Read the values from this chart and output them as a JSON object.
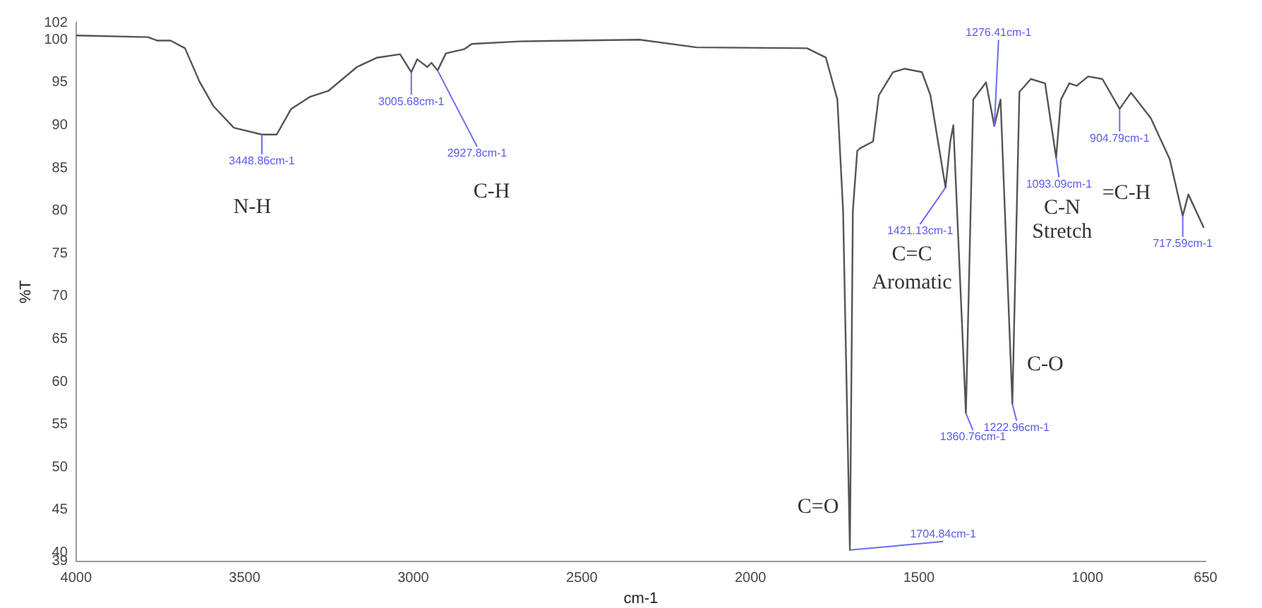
{
  "chart_data": {
    "type": "line",
    "xlabel": "cm-1",
    "ylabel": "%T",
    "x": [
      4000,
      3787,
      3760,
      3720,
      3677,
      3634,
      3592,
      3532,
      3448.86,
      3405,
      3362,
      3307,
      3252,
      3167,
      3107,
      3039,
      3005.68,
      2988,
      2958,
      2946,
      2927.8,
      2903,
      2848,
      2826,
      2682,
      2329,
      2160,
      1832,
      1776,
      1742,
      1725,
      1704.84,
      1696,
      1683,
      1674,
      1636,
      1619,
      1577,
      1542,
      1491,
      1466,
      1421.13,
      1407,
      1398,
      1360.76,
      1339,
      1301,
      1276.41,
      1258,
      1222.96,
      1202,
      1168,
      1126,
      1093.09,
      1079,
      1054,
      1032,
      998,
      956,
      904.79,
      871,
      812,
      756,
      717.59,
      701,
      655
    ],
    "series": [
      {
        "color": "#555555",
        "values": [
          100.5,
          100.3,
          99.9,
          99.9,
          99,
          95.1,
          92.2,
          89.7,
          88.9,
          88.9,
          91.9,
          93.3,
          94,
          96.8,
          97.9,
          98.3,
          96.2,
          97.7,
          96.8,
          97.3,
          96.4,
          98.4,
          98.9,
          99.5,
          99.8,
          100,
          99.1,
          99,
          97.9,
          93,
          80,
          40.3,
          80,
          87,
          87.3,
          88.1,
          93.5,
          96.2,
          96.6,
          96.2,
          93.5,
          82.7,
          88.1,
          90,
          56.3,
          93,
          95,
          89.9,
          93,
          57.4,
          93.9,
          95.4,
          94.9,
          86.2,
          93,
          94.9,
          94.6,
          95.7,
          95.4,
          91.9,
          93.8,
          90.8,
          86,
          79.4,
          81.9,
          78
        ]
      }
    ],
    "xlim": [
      4000,
      650
    ],
    "xticks": [
      4000,
      3500,
      3000,
      2500,
      2000,
      1500,
      1000,
      650
    ],
    "ylim": [
      39,
      102
    ],
    "yticks": [
      39,
      40,
      45,
      50,
      55,
      60,
      65,
      70,
      75,
      80,
      85,
      90,
      95,
      100,
      102
    ],
    "grid": false,
    "legend": false,
    "marker": "none",
    "line_style": "solid",
    "annotations": [
      {
        "text": "3448.86cm-1",
        "x": 3448.86,
        "y": 88.9
      },
      {
        "text": "3005.68cm-1",
        "x": 3005.68,
        "y": 96.2
      },
      {
        "text": "2927.8cm-1",
        "x": 2927.8,
        "y": 96.4
      },
      {
        "text": "1276.41cm-1",
        "x": 1276.41,
        "y": 89.9
      },
      {
        "text": "1421.13cm-1",
        "x": 1421.13,
        "y": 82.7
      },
      {
        "text": "1360.76cm-1",
        "x": 1360.76,
        "y": 56.3
      },
      {
        "text": "1222.96cm-1",
        "x": 1222.96,
        "y": 57.4
      },
      {
        "text": "1093.09cm-1",
        "x": 1093.09,
        "y": 86.2
      },
      {
        "text": "904.79cm-1",
        "x": 904.79,
        "y": 91.9
      },
      {
        "text": "717.59cm-1",
        "x": 717.59,
        "y": 79.4
      },
      {
        "text": "1704.84cm-1",
        "x": 1704.84,
        "y": 40.3
      },
      "N-H",
      "C-H",
      "C=C",
      "Aromatic",
      "C-N",
      "Stretch",
      "=C-H",
      "C-O",
      "C=O"
    ]
  }
}
